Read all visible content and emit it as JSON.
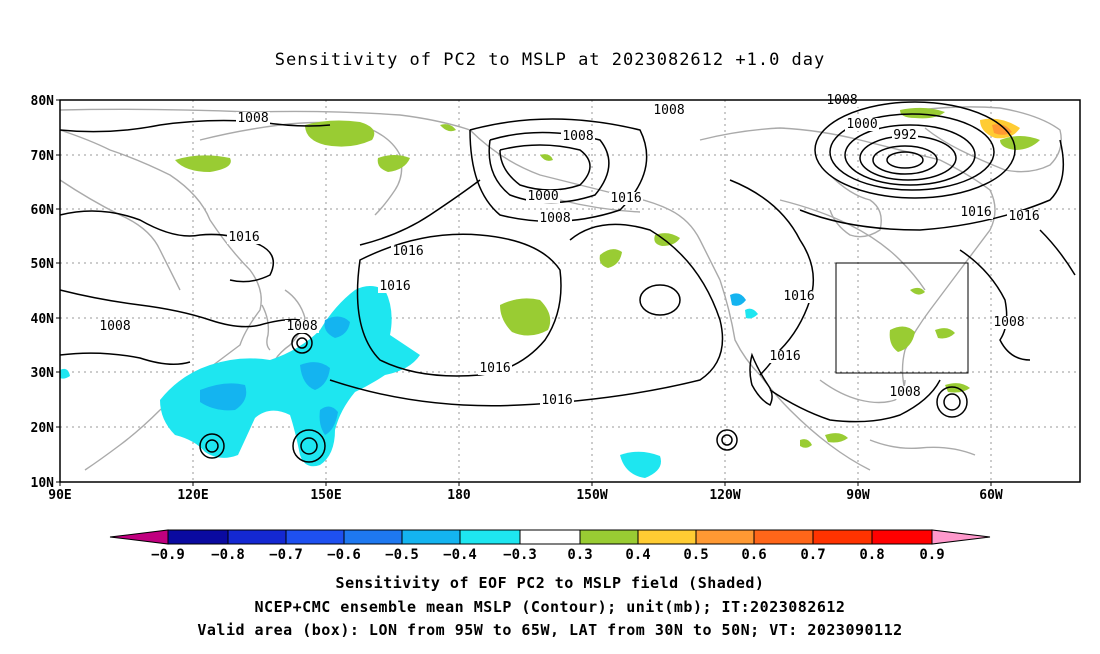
{
  "title": "Sensitivity of PC2 to MSLP at 2023082612 +1.0 day",
  "lat_ticks": [
    "80N",
    "70N",
    "60N",
    "50N",
    "40N",
    "30N",
    "20N",
    "10N"
  ],
  "lon_ticks": [
    "90E",
    "120E",
    "150E",
    "180",
    "150W",
    "120W",
    "90W",
    "60W"
  ],
  "contour_labels": [
    "1008",
    "1016",
    "1008",
    "1016",
    "1008",
    "1000",
    "1008",
    "1016",
    "1016",
    "1008",
    "1016",
    "1016",
    "1008",
    "1000",
    "992",
    "1008",
    "1016",
    "1016",
    "1016",
    "1016",
    "1008",
    "1008"
  ],
  "validation_box": {
    "lon_range": "95W to 65W",
    "lat_range": "30N to 50N"
  },
  "colorbar": {
    "labels": [
      "-0.9",
      "-0.8",
      "-0.7",
      "-0.6",
      "-0.5",
      "-0.4",
      "-0.3",
      "0.3",
      "0.4",
      "0.5",
      "0.6",
      "0.7",
      "0.8",
      "0.9"
    ],
    "colors": [
      "#c0007f",
      "#0a0aa0",
      "#1428d2",
      "#1e50f0",
      "#1e78f0",
      "#14b4f0",
      "#1ee6f0",
      "#ffffff",
      "#99cc33",
      "#ffcc33",
      "#ff9933",
      "#ff6619",
      "#ff3300",
      "#ff0000",
      "#ff99cc"
    ]
  },
  "captions": [
    "Sensitivity of EOF PC2 to MSLP field (Shaded)",
    "NCEP+CMC ensemble mean MSLP (Contour); unit(mb); IT:2023082612",
    "Valid area (box): LON from 95W to 65W, LAT from 30N to 50N; VT: 2023090112"
  ]
}
